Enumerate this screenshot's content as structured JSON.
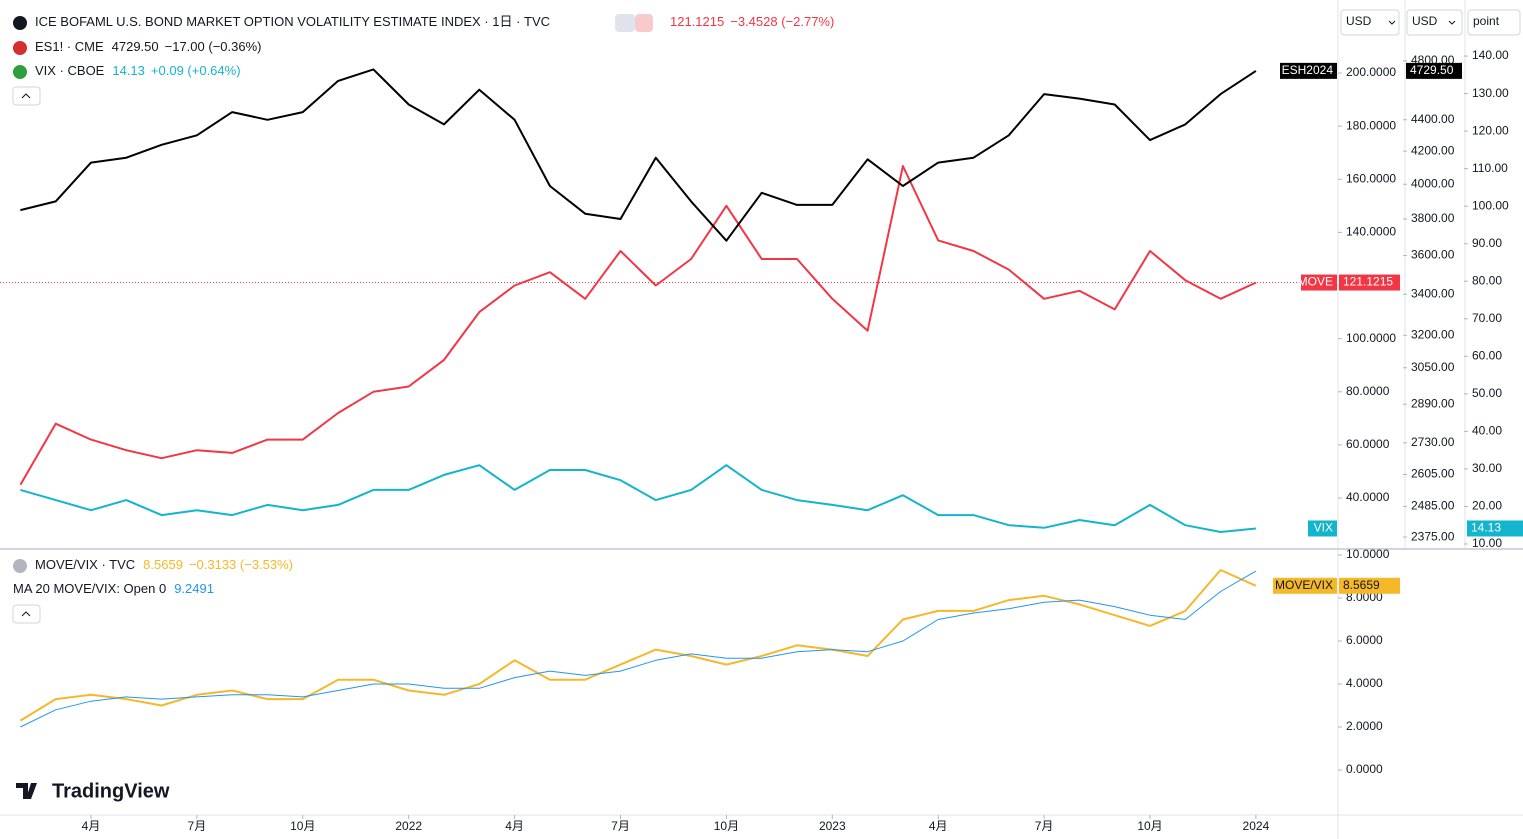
{
  "toolbar": [
    "USD",
    "USD",
    "point"
  ],
  "branding": "TradingView",
  "chart_data": [
    {
      "type": "line",
      "title": "ICE BOFAML U.S. BOND MARKET OPTION VOLATILITY ESTIMATE INDEX · 1日 · TVC",
      "x": [
        "2021-02",
        "2021-03",
        "2021-04",
        "2021-05",
        "2021-06",
        "2021-07",
        "2021-08",
        "2021-09",
        "2021-10",
        "2021-11",
        "2021-12",
        "2022-01",
        "2022-02",
        "2022-03",
        "2022-04",
        "2022-05",
        "2022-06",
        "2022-07",
        "2022-08",
        "2022-09",
        "2022-10",
        "2022-11",
        "2022-12",
        "2023-01",
        "2023-02",
        "2023-03",
        "2023-04",
        "2023-05",
        "2023-06",
        "2023-07",
        "2023-08",
        "2023-09",
        "2023-10",
        "2023-11",
        "2023-12",
        "2024-01"
      ],
      "ylim": [
        21.2,
        225.6
      ],
      "yticks": [
        {
          "value": 40,
          "label": "40.0000"
        },
        {
          "value": 60,
          "label": "60.0000"
        },
        {
          "value": 80,
          "label": "80.0000"
        },
        {
          "value": 100,
          "label": "100.0000"
        },
        {
          "value": 120,
          "label": "120.0000"
        },
        {
          "value": 140,
          "label": "140.0000"
        },
        {
          "value": 160,
          "label": "160.0000"
        },
        {
          "value": 180,
          "label": "180.0000"
        },
        {
          "value": 200,
          "label": "200.0000"
        }
      ],
      "y2lim": [
        2337,
        5213
      ],
      "y2scale": "log",
      "y2ticks": [
        {
          "value": 2375,
          "label": "2375.00"
        },
        {
          "value": 2485,
          "label": "2485.00"
        },
        {
          "value": 2605,
          "label": "2605.00"
        },
        {
          "value": 2730,
          "label": "2730.00"
        },
        {
          "value": 2890,
          "label": "2890.00"
        },
        {
          "value": 3050,
          "label": "3050.00"
        },
        {
          "value": 3200,
          "label": "3200.00"
        },
        {
          "value": 3400,
          "label": "3400.00"
        },
        {
          "value": 3600,
          "label": "3600.00"
        },
        {
          "value": 3800,
          "label": "3800.00"
        },
        {
          "value": 4000,
          "label": "4000.00"
        },
        {
          "value": 4200,
          "label": "4200.00"
        },
        {
          "value": 4400,
          "label": "4400.00"
        },
        {
          "value": 4800,
          "label": "4800.00"
        }
      ],
      "y3lim": [
        8.93,
        153.6
      ],
      "y3ticks": [
        {
          "value": 10,
          "label": "10.00"
        },
        {
          "value": 20,
          "label": "20.00"
        },
        {
          "value": 30,
          "label": "30.00"
        },
        {
          "value": 40,
          "label": "40.00"
        },
        {
          "value": 50,
          "label": "50.00"
        },
        {
          "value": 60,
          "label": "60.00"
        },
        {
          "value": 70,
          "label": "70.00"
        },
        {
          "value": 80,
          "label": "80.00"
        },
        {
          "value": 90,
          "label": "90.00"
        },
        {
          "value": 100,
          "label": "100.00"
        },
        {
          "value": 110,
          "label": "110.00"
        },
        {
          "value": 120,
          "label": "120.00"
        },
        {
          "value": 130,
          "label": "130.00"
        },
        {
          "value": 140,
          "label": "140.00"
        }
      ],
      "grid": false,
      "series": [
        {
          "name": "MOVE",
          "color": "#f23645",
          "axis": "y",
          "change": "−3.4528 (−2.77%)",
          "values": [
            45,
            68,
            62,
            58,
            55,
            58,
            57,
            62,
            62,
            72,
            80,
            82,
            92,
            110,
            120,
            125,
            115,
            133,
            120,
            130,
            150,
            130,
            130,
            115,
            103,
            165,
            137,
            133,
            126,
            115,
            118,
            111,
            133,
            122,
            115,
            121.1215
          ]
        },
        {
          "name": "ESH2024",
          "legend": "ES1! · CME",
          "last_label": "4729.50",
          "change": "−17.00 (−0.36%)",
          "color": "#000000",
          "axis": "y2",
          "values": [
            3850,
            3900,
            4130,
            4160,
            4240,
            4300,
            4450,
            4400,
            4450,
            4660,
            4740,
            4500,
            4370,
            4600,
            4400,
            3990,
            3830,
            3800,
            4160,
            3900,
            3680,
            3950,
            3880,
            3880,
            4150,
            3990,
            4130,
            4160,
            4300,
            4570,
            4540,
            4500,
            4270,
            4370,
            4570,
            4729.5
          ]
        },
        {
          "name": "VIX",
          "legend": "VIX · CBOE",
          "change": "+0.09 (+0.64%)",
          "color": "#12b5cb",
          "axis": "y3",
          "values": [
            24.4,
            21.7,
            19,
            21.7,
            17.7,
            19,
            17.7,
            20.4,
            19,
            20.4,
            24.4,
            24.4,
            28.4,
            31,
            24.4,
            29.7,
            29.7,
            27,
            21.7,
            24.4,
            31,
            24.4,
            21.7,
            20.4,
            19,
            23,
            17.7,
            17.7,
            15,
            14.3,
            16.4,
            15,
            20.4,
            15,
            13.2,
            14.13
          ]
        }
      ]
    },
    {
      "type": "line",
      "x": [
        "2021-02",
        "2021-03",
        "2021-04",
        "2021-05",
        "2021-06",
        "2021-07",
        "2021-08",
        "2021-09",
        "2021-10",
        "2021-11",
        "2021-12",
        "2022-01",
        "2022-02",
        "2022-03",
        "2022-04",
        "2022-05",
        "2022-06",
        "2022-07",
        "2022-08",
        "2022-09",
        "2022-10",
        "2022-11",
        "2022-12",
        "2023-01",
        "2023-02",
        "2023-03",
        "2023-04",
        "2023-05",
        "2023-06",
        "2023-07",
        "2023-08",
        "2023-09",
        "2023-10",
        "2023-11",
        "2023-12",
        "2024-01"
      ],
      "ylim": [
        -2.09,
        10.23
      ],
      "yticks": [
        {
          "value": 0,
          "label": "0.0000"
        },
        {
          "value": 2,
          "label": "2.0000"
        },
        {
          "value": 4,
          "label": "4.0000"
        },
        {
          "value": 6,
          "label": "6.0000"
        },
        {
          "value": 8,
          "label": "8.0000"
        },
        {
          "value": 10,
          "label": "10.0000"
        }
      ],
      "xticks": [
        {
          "value": "2021-04",
          "label": "4月"
        },
        {
          "value": "2021-07",
          "label": "7月"
        },
        {
          "value": "2021-10",
          "label": "10月"
        },
        {
          "value": "2022-01",
          "label": "2022"
        },
        {
          "value": "2022-04",
          "label": "4月"
        },
        {
          "value": "2022-07",
          "label": "7月"
        },
        {
          "value": "2022-10",
          "label": "10月"
        },
        {
          "value": "2023-01",
          "label": "2023"
        },
        {
          "value": "2023-04",
          "label": "4月"
        },
        {
          "value": "2023-07",
          "label": "7月"
        },
        {
          "value": "2023-10",
          "label": "10月"
        },
        {
          "value": "2024-01",
          "label": "2024"
        }
      ],
      "grid": false,
      "series": [
        {
          "name": "MOVE/VIX",
          "legend": "MOVE/VIX · TVC",
          "change": "−0.3133 (−3.53%)",
          "color": "#f5b829",
          "values": [
            2.3,
            3.3,
            3.5,
            3.3,
            3.0,
            3.5,
            3.7,
            3.3,
            3.3,
            4.2,
            4.2,
            3.7,
            3.5,
            4.0,
            5.1,
            4.2,
            4.2,
            4.9,
            5.6,
            5.3,
            4.9,
            5.3,
            5.8,
            5.6,
            5.3,
            7.0,
            7.4,
            7.4,
            7.9,
            8.1,
            7.7,
            7.2,
            6.7,
            7.4,
            9.3,
            8.5659
          ]
        },
        {
          "name": "MA 20 MOVE/VIX: Open 0",
          "color": "#2196f3",
          "values": [
            2.0,
            2.8,
            3.2,
            3.4,
            3.3,
            3.4,
            3.5,
            3.5,
            3.4,
            3.7,
            4.0,
            4.0,
            3.8,
            3.8,
            4.3,
            4.6,
            4.4,
            4.6,
            5.1,
            5.4,
            5.2,
            5.2,
            5.5,
            5.6,
            5.5,
            6.0,
            7.0,
            7.3,
            7.5,
            7.8,
            7.9,
            7.6,
            7.2,
            7.0,
            8.3,
            9.2491
          ]
        }
      ]
    }
  ]
}
